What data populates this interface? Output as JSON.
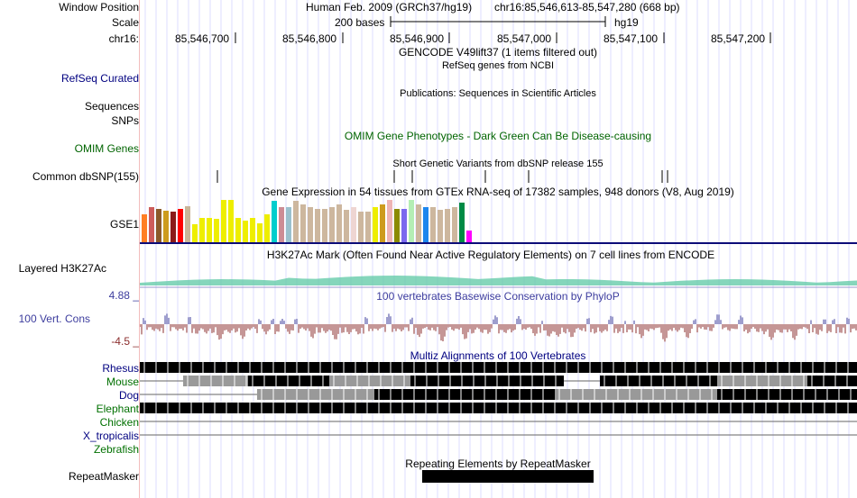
{
  "labels": {
    "window_position": "Window Position",
    "scale": "Scale",
    "chrom": "chr16:",
    "refseq": "RefSeq Curated",
    "sequences": "Sequences",
    "snps": "SNPs",
    "omim": "OMIM Genes",
    "dbsnp": "Common dbSNP(155)",
    "gse1": "GSE1",
    "h3k27ac": "Layered H3K27Ac",
    "cons_max": "4.88 _",
    "cons": "100 Vert. Cons",
    "cons_min": "-4.5 _",
    "repeatmasker": "RepeatMasker"
  },
  "header": {
    "assembly": "Human Feb. 2009 (GRCh37/hg19)",
    "position": "chr16:85,546,613-85,547,280 (668 bp)",
    "scale_text": "200 bases",
    "scale_db": "hg19"
  },
  "ruler": {
    "ticks": [
      "85,546,700",
      "85,546,800",
      "85,546,900",
      "85,547,000",
      "85,547,100",
      "85,547,200"
    ]
  },
  "track_titles": {
    "gencode": "GENCODE V49lift37 (1 items filtered out)",
    "refseq": "RefSeq genes from NCBI",
    "publications": "Publications: Sequences in Scientific Articles",
    "omim": "OMIM Gene Phenotypes - Dark Green Can Be Disease-causing",
    "dbsnp": "Short Genetic Variants from dbSNP release 155",
    "gtex": "Gene Expression in 54 tissues from GTEx RNA-seq of 17382 samples, 948 donors (V8, Aug 2019)",
    "h3k27ac": "H3K27Ac Mark (Often Found Near Active Regulatory Elements) on 7 cell lines from ENCODE",
    "phylop": "100 vertebrates Basewise Conservation by PhyloP",
    "multiz": "Multiz Alignments of 100 Vertebrates",
    "repeatmasker": "Repeating Elements by RepeatMasker"
  },
  "species": [
    "Rhesus",
    "Mouse",
    "Dog",
    "Elephant",
    "Chicken",
    "X_tropicalis",
    "Zebrafish"
  ],
  "colors": {
    "label_blue": "#000080",
    "omim_green": "#006400",
    "cons_blue": "#3d3d9e",
    "cons_red": "#8b2d2d",
    "species_green": "#007000"
  },
  "gtex_bars": [
    {
      "color": "#ff7f24",
      "level": 0.66
    },
    {
      "color": "#cd5c5c",
      "level": 0.83
    },
    {
      "color": "#8b5a2b",
      "level": 0.79
    },
    {
      "color": "#cd9b1d",
      "level": 0.74
    },
    {
      "color": "#8b1a1a",
      "level": 0.72
    },
    {
      "color": "#ff0000",
      "level": 0.79
    },
    {
      "color": "#c9b598",
      "level": 0.86
    },
    {
      "color": "#eeee00",
      "level": 0.42
    },
    {
      "color": "#eeee00",
      "level": 0.58
    },
    {
      "color": "#eeee00",
      "level": 0.58
    },
    {
      "color": "#eeee00",
      "level": 0.55
    },
    {
      "color": "#eeee00",
      "level": 1.0
    },
    {
      "color": "#eeee00",
      "level": 1.0
    },
    {
      "color": "#eeee00",
      "level": 0.58
    },
    {
      "color": "#eeee00",
      "level": 0.52
    },
    {
      "color": "#eeee00",
      "level": 0.58
    },
    {
      "color": "#eeee00",
      "level": 0.45
    },
    {
      "color": "#eeee00",
      "level": 0.66
    },
    {
      "color": "#00cdcd",
      "level": 0.97
    },
    {
      "color": "#cd8c95",
      "level": 0.83
    },
    {
      "color": "#9ac0cd",
      "level": 0.83
    },
    {
      "color": "#cdb79e",
      "level": 0.97
    },
    {
      "color": "#cdb79e",
      "level": 0.9
    },
    {
      "color": "#cdb79e",
      "level": 0.83
    },
    {
      "color": "#cdb79e",
      "level": 0.79
    },
    {
      "color": "#cdb79e",
      "level": 0.79
    },
    {
      "color": "#cdb79e",
      "level": 0.83
    },
    {
      "color": "#cdb79e",
      "level": 0.9
    },
    {
      "color": "#cdb79e",
      "level": 0.76
    },
    {
      "color": "#eed5d2",
      "level": 0.83
    },
    {
      "color": "#cdb79e",
      "level": 0.72
    },
    {
      "color": "#cdb79e",
      "level": 0.72
    },
    {
      "color": "#eeee00",
      "level": 0.83
    },
    {
      "color": "#cd9b1d",
      "level": 0.9
    },
    {
      "color": "#eeb4b4",
      "level": 1.0
    },
    {
      "color": "#8b8b00",
      "level": 0.79
    },
    {
      "color": "#7a67ee",
      "level": 0.79
    },
    {
      "color": "#b4eeb4",
      "level": 1.0
    },
    {
      "color": "#cdb79e",
      "level": 0.9
    },
    {
      "color": "#1c86ee",
      "level": 0.83
    },
    {
      "color": "#cdb79e",
      "level": 0.83
    },
    {
      "color": "#cdb79e",
      "level": 0.76
    },
    {
      "color": "#cdb79e",
      "level": 0.79
    },
    {
      "color": "#cdb79e",
      "level": 0.83
    },
    {
      "color": "#008b45",
      "level": 0.93
    },
    {
      "color": "#ff00ff",
      "level": 0.28
    }
  ]
}
